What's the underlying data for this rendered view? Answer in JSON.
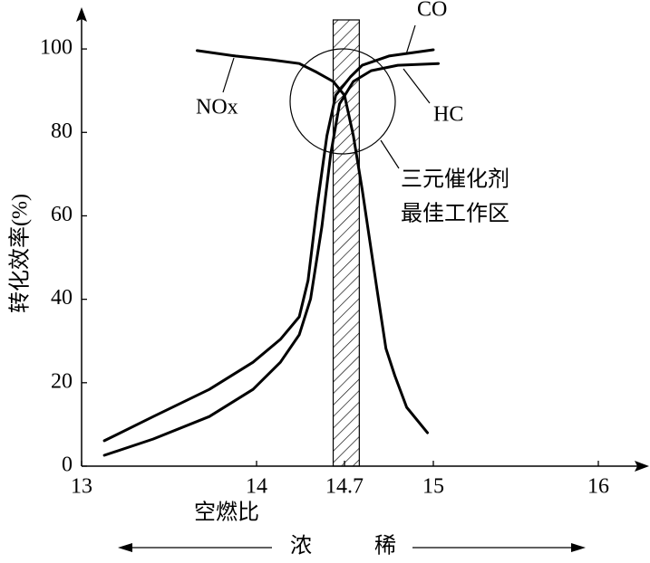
{
  "chart_data": {
    "type": "line",
    "xlabel": "空燃比",
    "ylabel": "转化效率(%)",
    "xlim": [
      13,
      16.3
    ],
    "xticks": [
      13,
      14,
      14.7,
      15,
      16
    ],
    "ylim": [
      0,
      110
    ],
    "yticks": [
      0,
      20,
      40,
      60,
      80,
      100
    ],
    "band": [
      14.61,
      14.75
    ],
    "annotation": [
      "三元催化剂",
      "最佳工作区"
    ],
    "direction_labels": [
      "浓",
      "稀"
    ],
    "series": [
      {
        "name": "NOx",
        "color": "#000000",
        "x": [
          13.66,
          13.88,
          14.12,
          14.34,
          14.48,
          14.61,
          14.7,
          14.73,
          14.76,
          14.81,
          14.84,
          14.87,
          14.91,
          14.98
        ],
        "values": [
          99.6,
          98.3,
          97.4,
          96.5,
          94.4,
          92.2,
          88.9,
          79.2,
          66.2,
          42.3,
          28.2,
          21.7,
          14.1,
          8.0
        ]
      },
      {
        "name": "CO",
        "color": "#000000",
        "x": [
          13.13,
          13.41,
          13.73,
          13.98,
          14.19,
          14.34,
          14.41,
          14.48,
          14.56,
          14.63,
          14.72,
          14.76,
          14.85,
          15.0
        ],
        "values": [
          6.1,
          11.9,
          18.4,
          24.9,
          30.4,
          35.8,
          44.5,
          61.8,
          79.2,
          88.9,
          93.3,
          96.1,
          98.3,
          99.8
        ]
      },
      {
        "name": "HC",
        "color": "#000000",
        "x": [
          13.13,
          13.41,
          13.73,
          13.98,
          14.19,
          14.34,
          14.43,
          14.52,
          14.59,
          14.66,
          14.73,
          14.79,
          14.88,
          15.03
        ],
        "values": [
          2.6,
          6.5,
          11.9,
          18.4,
          24.9,
          31.5,
          40.1,
          57.5,
          74.8,
          86.8,
          92.2,
          94.8,
          96.1,
          96.5
        ]
      }
    ]
  }
}
